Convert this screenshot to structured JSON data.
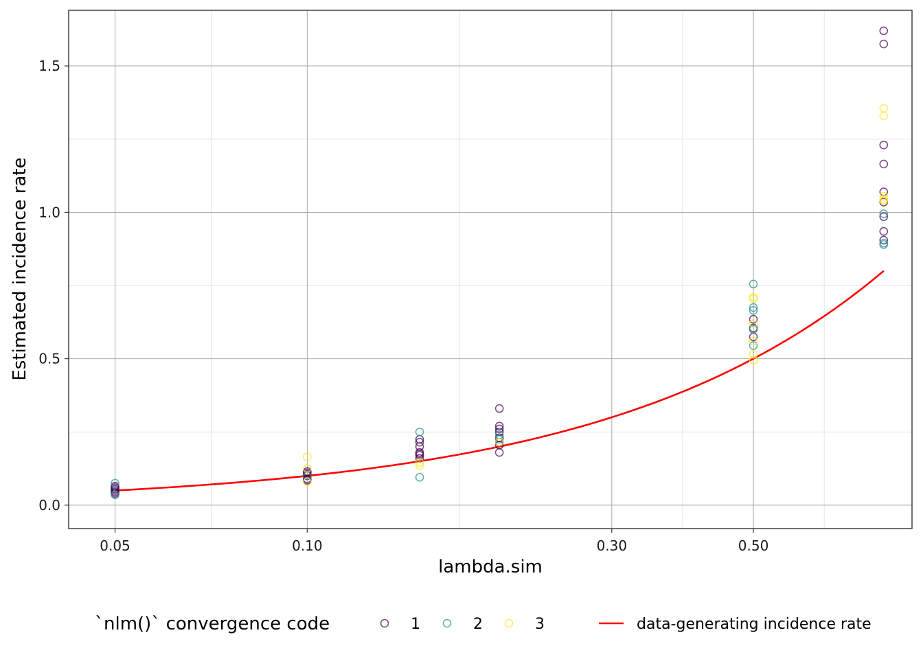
{
  "chart_data": {
    "type": "scatter",
    "xlabel": "lambda.sim",
    "ylabel": "Estimated incidence rate",
    "x_scale": "log10",
    "xlim": [
      0.0423,
      0.886
    ],
    "ylim": [
      -0.08,
      1.69
    ],
    "x_ticks": [
      0.05,
      0.1,
      0.3,
      0.5
    ],
    "x_tick_labels": [
      "0.05",
      "0.10",
      "0.30",
      "0.50"
    ],
    "y_ticks": [
      0.0,
      0.5,
      1.0,
      1.5
    ],
    "y_tick_labels": [
      "0.0",
      "0.5",
      "1.0",
      "1.5"
    ],
    "grid": true,
    "legend": {
      "position": "bottom",
      "title": "`nlm()` convergence code",
      "entries": [
        {
          "label": "1",
          "color": "#440154"
        },
        {
          "label": "2",
          "color": "#21908C"
        },
        {
          "label": "3",
          "color": "#FDE725"
        }
      ],
      "line_label": "data-generating incidence rate",
      "line_color": "#ff0000"
    },
    "series": [
      {
        "name": "1",
        "color": "#440154",
        "points": [
          [
            0.05,
            0.065
          ],
          [
            0.05,
            0.06
          ],
          [
            0.05,
            0.055
          ],
          [
            0.05,
            0.05
          ],
          [
            0.05,
            0.045
          ],
          [
            0.05,
            0.04
          ],
          [
            0.1,
            0.115
          ],
          [
            0.1,
            0.11
          ],
          [
            0.1,
            0.105
          ],
          [
            0.1,
            0.1
          ],
          [
            0.1,
            0.09
          ],
          [
            0.1,
            0.085
          ],
          [
            0.15,
            0.225
          ],
          [
            0.15,
            0.215
          ],
          [
            0.15,
            0.2
          ],
          [
            0.15,
            0.18
          ],
          [
            0.15,
            0.175
          ],
          [
            0.15,
            0.17
          ],
          [
            0.15,
            0.16
          ],
          [
            0.2,
            0.33
          ],
          [
            0.2,
            0.27
          ],
          [
            0.2,
            0.26
          ],
          [
            0.2,
            0.25
          ],
          [
            0.2,
            0.23
          ],
          [
            0.2,
            0.215
          ],
          [
            0.2,
            0.205
          ],
          [
            0.2,
            0.18
          ],
          [
            0.5,
            0.635
          ],
          [
            0.5,
            0.605
          ],
          [
            0.5,
            0.575
          ],
          [
            0.8,
            1.62
          ],
          [
            0.8,
            1.575
          ],
          [
            0.8,
            1.23
          ],
          [
            0.8,
            1.165
          ],
          [
            0.8,
            1.07
          ],
          [
            0.8,
            1.035
          ],
          [
            0.8,
            0.985
          ],
          [
            0.8,
            0.935
          ],
          [
            0.8,
            0.905
          ]
        ]
      },
      {
        "name": "2",
        "color": "#21908C",
        "points": [
          [
            0.05,
            0.075
          ],
          [
            0.05,
            0.035
          ],
          [
            0.1,
            0.1
          ],
          [
            0.15,
            0.25
          ],
          [
            0.15,
            0.095
          ],
          [
            0.2,
            0.24
          ],
          [
            0.2,
            0.225
          ],
          [
            0.5,
            0.755
          ],
          [
            0.5,
            0.675
          ],
          [
            0.5,
            0.665
          ],
          [
            0.5,
            0.6
          ],
          [
            0.5,
            0.545
          ],
          [
            0.8,
            0.995
          ],
          [
            0.8,
            0.895
          ],
          [
            0.8,
            0.89
          ]
        ]
      },
      {
        "name": "3",
        "color": "#FDE725",
        "points": [
          [
            0.1,
            0.165
          ],
          [
            0.1,
            0.125
          ],
          [
            0.1,
            0.08
          ],
          [
            0.15,
            0.145
          ],
          [
            0.15,
            0.135
          ],
          [
            0.2,
            0.215
          ],
          [
            0.5,
            0.71
          ],
          [
            0.5,
            0.705
          ],
          [
            0.5,
            0.62
          ],
          [
            0.5,
            0.56
          ],
          [
            0.5,
            0.515
          ],
          [
            0.5,
            0.495
          ],
          [
            0.8,
            1.355
          ],
          [
            0.8,
            1.33
          ],
          [
            0.8,
            1.055
          ],
          [
            0.8,
            1.045
          ],
          [
            0.8,
            1.04
          ]
        ]
      }
    ],
    "line": {
      "name": "data-generating incidence rate",
      "color": "#ff0000",
      "formula": "y = x",
      "x_range": [
        0.05,
        0.8
      ]
    }
  }
}
